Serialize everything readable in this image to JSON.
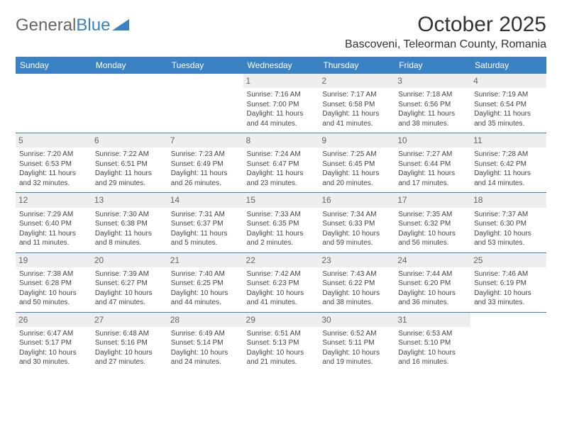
{
  "logo": {
    "general": "General",
    "blue": "Blue"
  },
  "title": "October 2025",
  "location": "Bascoveni, Teleorman County, Romania",
  "colors": {
    "header_bg": "#3b82c4",
    "header_text": "#ffffff",
    "daynum_bg": "#eeeeee",
    "daynum_text": "#666666",
    "body_text": "#444444",
    "row_border": "#3b82c4",
    "background": "#ffffff"
  },
  "typography": {
    "title_fontsize": 30,
    "location_fontsize": 16,
    "weekday_fontsize": 12,
    "daynum_fontsize": 12,
    "cell_fontsize": 10
  },
  "weekdays": [
    "Sunday",
    "Monday",
    "Tuesday",
    "Wednesday",
    "Thursday",
    "Friday",
    "Saturday"
  ],
  "weeks": [
    [
      {
        "n": "",
        "t": ""
      },
      {
        "n": "",
        "t": ""
      },
      {
        "n": "",
        "t": ""
      },
      {
        "n": "1",
        "t": "Sunrise: 7:16 AM\nSunset: 7:00 PM\nDaylight: 11 hours and 44 minutes."
      },
      {
        "n": "2",
        "t": "Sunrise: 7:17 AM\nSunset: 6:58 PM\nDaylight: 11 hours and 41 minutes."
      },
      {
        "n": "3",
        "t": "Sunrise: 7:18 AM\nSunset: 6:56 PM\nDaylight: 11 hours and 38 minutes."
      },
      {
        "n": "4",
        "t": "Sunrise: 7:19 AM\nSunset: 6:54 PM\nDaylight: 11 hours and 35 minutes."
      }
    ],
    [
      {
        "n": "5",
        "t": "Sunrise: 7:20 AM\nSunset: 6:53 PM\nDaylight: 11 hours and 32 minutes."
      },
      {
        "n": "6",
        "t": "Sunrise: 7:22 AM\nSunset: 6:51 PM\nDaylight: 11 hours and 29 minutes."
      },
      {
        "n": "7",
        "t": "Sunrise: 7:23 AM\nSunset: 6:49 PM\nDaylight: 11 hours and 26 minutes."
      },
      {
        "n": "8",
        "t": "Sunrise: 7:24 AM\nSunset: 6:47 PM\nDaylight: 11 hours and 23 minutes."
      },
      {
        "n": "9",
        "t": "Sunrise: 7:25 AM\nSunset: 6:45 PM\nDaylight: 11 hours and 20 minutes."
      },
      {
        "n": "10",
        "t": "Sunrise: 7:27 AM\nSunset: 6:44 PM\nDaylight: 11 hours and 17 minutes."
      },
      {
        "n": "11",
        "t": "Sunrise: 7:28 AM\nSunset: 6:42 PM\nDaylight: 11 hours and 14 minutes."
      }
    ],
    [
      {
        "n": "12",
        "t": "Sunrise: 7:29 AM\nSunset: 6:40 PM\nDaylight: 11 hours and 11 minutes."
      },
      {
        "n": "13",
        "t": "Sunrise: 7:30 AM\nSunset: 6:38 PM\nDaylight: 11 hours and 8 minutes."
      },
      {
        "n": "14",
        "t": "Sunrise: 7:31 AM\nSunset: 6:37 PM\nDaylight: 11 hours and 5 minutes."
      },
      {
        "n": "15",
        "t": "Sunrise: 7:33 AM\nSunset: 6:35 PM\nDaylight: 11 hours and 2 minutes."
      },
      {
        "n": "16",
        "t": "Sunrise: 7:34 AM\nSunset: 6:33 PM\nDaylight: 10 hours and 59 minutes."
      },
      {
        "n": "17",
        "t": "Sunrise: 7:35 AM\nSunset: 6:32 PM\nDaylight: 10 hours and 56 minutes."
      },
      {
        "n": "18",
        "t": "Sunrise: 7:37 AM\nSunset: 6:30 PM\nDaylight: 10 hours and 53 minutes."
      }
    ],
    [
      {
        "n": "19",
        "t": "Sunrise: 7:38 AM\nSunset: 6:28 PM\nDaylight: 10 hours and 50 minutes."
      },
      {
        "n": "20",
        "t": "Sunrise: 7:39 AM\nSunset: 6:27 PM\nDaylight: 10 hours and 47 minutes."
      },
      {
        "n": "21",
        "t": "Sunrise: 7:40 AM\nSunset: 6:25 PM\nDaylight: 10 hours and 44 minutes."
      },
      {
        "n": "22",
        "t": "Sunrise: 7:42 AM\nSunset: 6:23 PM\nDaylight: 10 hours and 41 minutes."
      },
      {
        "n": "23",
        "t": "Sunrise: 7:43 AM\nSunset: 6:22 PM\nDaylight: 10 hours and 38 minutes."
      },
      {
        "n": "24",
        "t": "Sunrise: 7:44 AM\nSunset: 6:20 PM\nDaylight: 10 hours and 36 minutes."
      },
      {
        "n": "25",
        "t": "Sunrise: 7:46 AM\nSunset: 6:19 PM\nDaylight: 10 hours and 33 minutes."
      }
    ],
    [
      {
        "n": "26",
        "t": "Sunrise: 6:47 AM\nSunset: 5:17 PM\nDaylight: 10 hours and 30 minutes."
      },
      {
        "n": "27",
        "t": "Sunrise: 6:48 AM\nSunset: 5:16 PM\nDaylight: 10 hours and 27 minutes."
      },
      {
        "n": "28",
        "t": "Sunrise: 6:49 AM\nSunset: 5:14 PM\nDaylight: 10 hours and 24 minutes."
      },
      {
        "n": "29",
        "t": "Sunrise: 6:51 AM\nSunset: 5:13 PM\nDaylight: 10 hours and 21 minutes."
      },
      {
        "n": "30",
        "t": "Sunrise: 6:52 AM\nSunset: 5:11 PM\nDaylight: 10 hours and 19 minutes."
      },
      {
        "n": "31",
        "t": "Sunrise: 6:53 AM\nSunset: 5:10 PM\nDaylight: 10 hours and 16 minutes."
      },
      {
        "n": "",
        "t": ""
      }
    ]
  ]
}
